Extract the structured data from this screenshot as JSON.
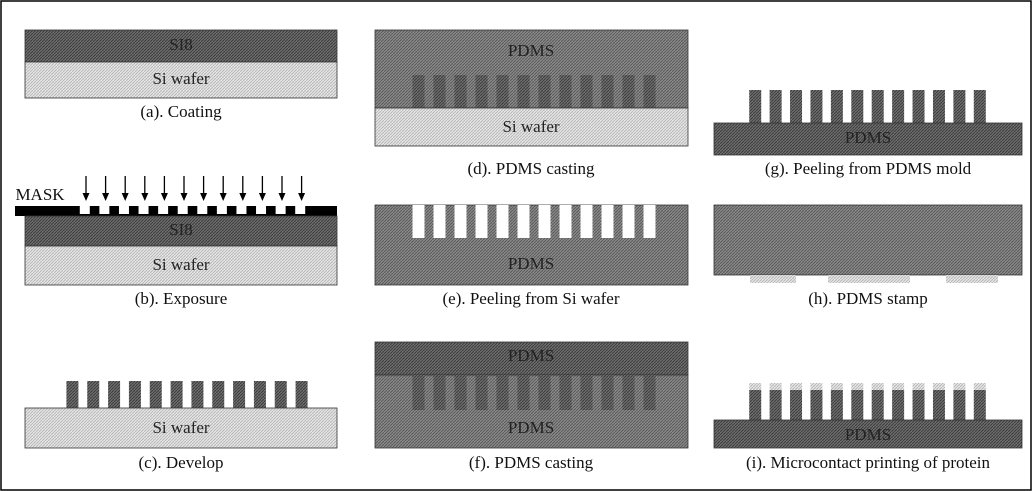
{
  "mask_label": "MASK",
  "panels": [
    {
      "caption": "(a). Coating",
      "labels": [
        "SI8",
        "Si wafer"
      ]
    },
    {
      "caption": "(b). Exposure",
      "labels": [
        "SI8",
        "Si wafer"
      ]
    },
    {
      "caption": "(c). Develop",
      "labels": [
        "Si wafer"
      ]
    },
    {
      "caption": "(d). PDMS casting",
      "labels": [
        "PDMS",
        "Si wafer"
      ]
    },
    {
      "caption": "(e). Peeling from Si wafer",
      "labels": [
        "PDMS"
      ]
    },
    {
      "caption": "(f). PDMS casting",
      "labels": [
        "PDMS",
        "PDMS"
      ]
    },
    {
      "caption": "(g). Peeling from PDMS mold",
      "labels": [
        "PDMS"
      ]
    },
    {
      "caption": "(h). PDMS stamp",
      "labels": []
    },
    {
      "caption": "(i). Microcontact printing of protein",
      "labels": [
        "PDMS"
      ]
    }
  ]
}
